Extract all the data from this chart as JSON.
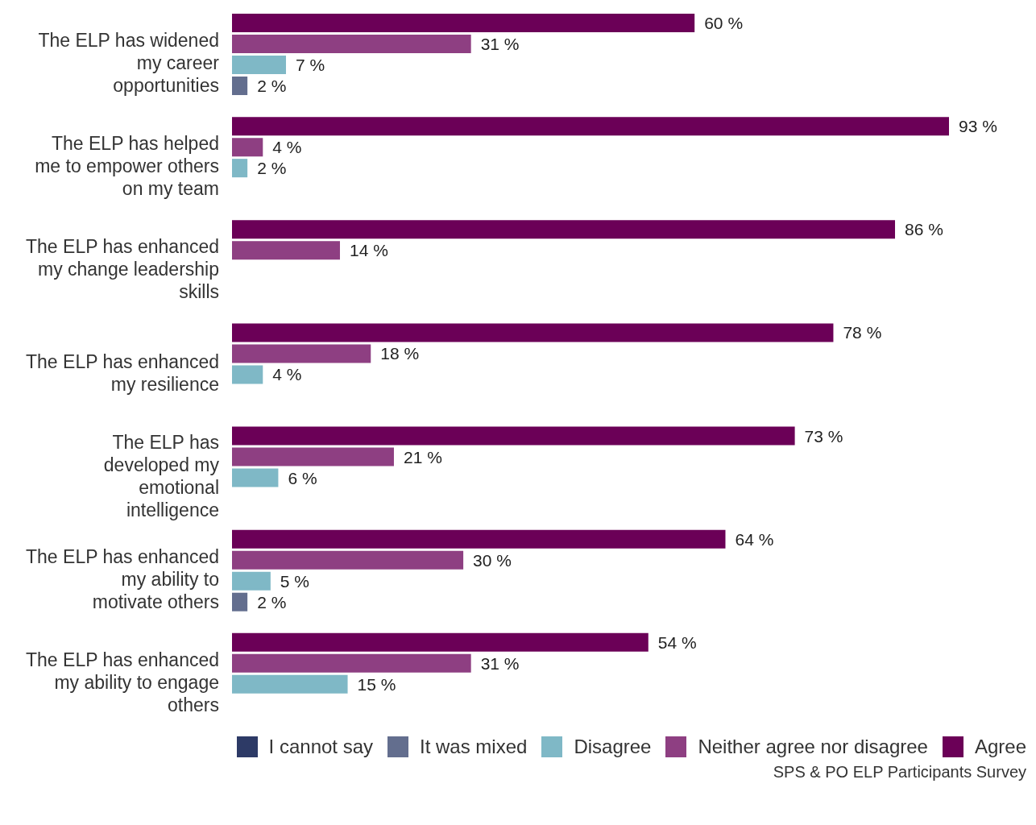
{
  "chart_data": {
    "type": "bar",
    "orientation": "horizontal",
    "categories": [
      "The ELP has widened my career opportunities",
      "The ELP has helped me to empower others on my team",
      "The ELP has enhanced my change leadership skills",
      "The ELP has enhanced my resilience",
      "The ELP has developed my emotional intelligence",
      "The ELP has enhanced my ability to motivate others",
      "The ELP has enhanced my ability to engage others"
    ],
    "series": [
      {
        "name": "Agree",
        "color": "#6b0057",
        "values": [
          60,
          93,
          86,
          78,
          73,
          64,
          54
        ],
        "value_labels": [
          "60 %",
          "93 %",
          "86 %",
          "78 %",
          "73 %",
          "64 %",
          "54 %"
        ]
      },
      {
        "name": "Neither agree nor disagree",
        "color": "#8e3f82",
        "values": [
          31,
          4,
          14,
          18,
          21,
          30,
          31
        ],
        "value_labels": [
          "31 %",
          "4 %",
          "14 %",
          "18 %",
          "21 %",
          "30 %",
          "31 %"
        ]
      },
      {
        "name": "Disagree",
        "color": "#7fb8c6",
        "values": [
          7,
          2,
          null,
          4,
          6,
          5,
          15
        ],
        "value_labels": [
          "7 %",
          "2 %",
          null,
          "4 %",
          "6 %",
          "5 %",
          "15 %"
        ]
      },
      {
        "name": "It was mixed",
        "color": "#636e8e",
        "values": [
          2,
          null,
          null,
          null,
          null,
          2,
          null
        ],
        "value_labels": [
          "2 %",
          null,
          null,
          null,
          null,
          "2 %",
          null
        ]
      },
      {
        "name": "I cannot say",
        "color": "#2d3a66",
        "values": [
          null,
          null,
          null,
          null,
          null,
          null,
          null
        ],
        "value_labels": [
          null,
          null,
          null,
          null,
          null,
          null,
          null
        ]
      }
    ],
    "legend": "bottom right",
    "grid": false,
    "annotations": [
      "SPS & PO ELP Participants Survey"
    ]
  }
}
